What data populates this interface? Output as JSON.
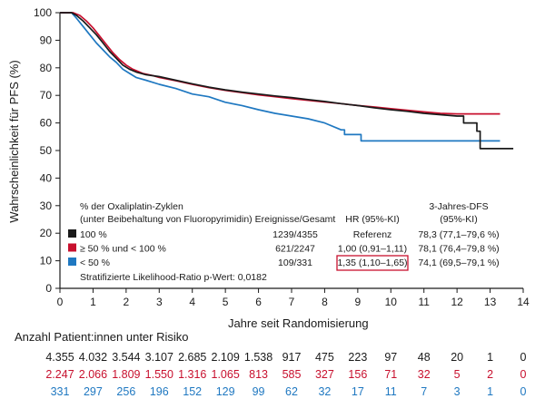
{
  "chart_data": {
    "type": "line",
    "subtype": "kaplan-meier",
    "xlabel": "Jahre seit Randomisierung",
    "ylabel": "Wahrscheinlichkeit für PFS (%)",
    "xlim": [
      0,
      14
    ],
    "ylim": [
      0,
      100
    ],
    "xticks": [
      "0",
      "1",
      "2",
      "3",
      "4",
      "5",
      "6",
      "7",
      "8",
      "9",
      "10",
      "11",
      "12",
      "13",
      "14"
    ],
    "yticks": [
      "0",
      "10",
      "20",
      "30",
      "40",
      "50",
      "60",
      "70",
      "80",
      "90",
      "100"
    ],
    "grid": false,
    "series": [
      {
        "name": "100 %",
        "color": "#1a1a1a",
        "points": [
          [
            0,
            100
          ],
          [
            0.35,
            100
          ],
          [
            0.5,
            99
          ],
          [
            0.7,
            97
          ],
          [
            0.9,
            94.5
          ],
          [
            1.1,
            92
          ],
          [
            1.3,
            89
          ],
          [
            1.5,
            86
          ],
          [
            1.7,
            83.5
          ],
          [
            1.9,
            81
          ],
          [
            2.1,
            79.5
          ],
          [
            2.3,
            78.5
          ],
          [
            2.6,
            77.5
          ],
          [
            3.0,
            76.8
          ],
          [
            3.5,
            75.5
          ],
          [
            4.0,
            74.2
          ],
          [
            4.5,
            73
          ],
          [
            5.0,
            72
          ],
          [
            5.5,
            71.2
          ],
          [
            6.0,
            70.5
          ],
          [
            6.5,
            69.8
          ],
          [
            7.0,
            69.2
          ],
          [
            7.5,
            68.5
          ],
          [
            8.0,
            67.8
          ],
          [
            8.5,
            67
          ],
          [
            9.0,
            66.3
          ],
          [
            9.5,
            65.5
          ],
          [
            10.0,
            64.8
          ],
          [
            10.5,
            64.2
          ],
          [
            11.0,
            63.5
          ],
          [
            11.5,
            63
          ],
          [
            12.0,
            62.5
          ],
          [
            12.2,
            62.5
          ],
          [
            12.2,
            60
          ],
          [
            12.6,
            60
          ],
          [
            12.6,
            57
          ],
          [
            12.7,
            57
          ],
          [
            12.7,
            50.7
          ],
          [
            13.7,
            50.7
          ]
        ]
      },
      {
        "name": "≥ 50 % und < 100 %",
        "color": "#c8102e",
        "points": [
          [
            0,
            100
          ],
          [
            0.4,
            100
          ],
          [
            0.6,
            99
          ],
          [
            0.8,
            97
          ],
          [
            1.0,
            94.5
          ],
          [
            1.2,
            91.5
          ],
          [
            1.4,
            88.5
          ],
          [
            1.6,
            85.5
          ],
          [
            1.8,
            83
          ],
          [
            2.0,
            81
          ],
          [
            2.2,
            79.5
          ],
          [
            2.5,
            78
          ],
          [
            2.8,
            77.2
          ],
          [
            3.0,
            76.5
          ],
          [
            3.5,
            75.3
          ],
          [
            4.0,
            74
          ],
          [
            4.5,
            72.8
          ],
          [
            5.0,
            71.8
          ],
          [
            5.5,
            71
          ],
          [
            6.0,
            70.2
          ],
          [
            6.5,
            69.5
          ],
          [
            7.0,
            68.8
          ],
          [
            7.5,
            68.2
          ],
          [
            8.0,
            67.6
          ],
          [
            8.5,
            67
          ],
          [
            9.0,
            66.3
          ],
          [
            9.5,
            65.8
          ],
          [
            10.0,
            65.2
          ],
          [
            10.5,
            64.6
          ],
          [
            11.0,
            64
          ],
          [
            11.5,
            63.5
          ],
          [
            12.0,
            63.3
          ],
          [
            13.3,
            63.3
          ]
        ]
      },
      {
        "name": "< 50 %",
        "color": "#1f78c1",
        "points": [
          [
            0,
            100
          ],
          [
            0.35,
            100
          ],
          [
            0.5,
            98
          ],
          [
            0.7,
            95
          ],
          [
            0.9,
            92
          ],
          [
            1.1,
            89
          ],
          [
            1.3,
            86.5
          ],
          [
            1.5,
            84
          ],
          [
            1.7,
            82
          ],
          [
            1.9,
            79.5
          ],
          [
            2.1,
            78
          ],
          [
            2.3,
            76.5
          ],
          [
            2.6,
            75.5
          ],
          [
            3.0,
            74
          ],
          [
            3.5,
            72.5
          ],
          [
            4.0,
            70.5
          ],
          [
            4.5,
            69.5
          ],
          [
            5.0,
            67.5
          ],
          [
            5.5,
            66.3
          ],
          [
            6.0,
            64.8
          ],
          [
            6.5,
            63.5
          ],
          [
            7.0,
            62.5
          ],
          [
            7.5,
            61.5
          ],
          [
            8.0,
            60
          ],
          [
            8.5,
            57.5
          ],
          [
            8.6,
            57.5
          ],
          [
            8.6,
            55.8
          ],
          [
            9.0,
            55.8
          ],
          [
            9.1,
            55.8
          ],
          [
            9.1,
            53.5
          ],
          [
            13.3,
            53.5
          ]
        ]
      }
    ],
    "legend": {
      "placement": "bottom-left",
      "group_title_1": "% der Oxaliplatin-Zyklen",
      "group_title_2": "(unter Beibehaltung von Fluoropyrimidin)",
      "col_events": "Ereignisse/Gesamt",
      "col_hr": "HR (95%-KI)",
      "col_dfs_1": "3-Jahres-DFS",
      "col_dfs_2": "(95%-KI)",
      "rows": [
        {
          "label": "100 %",
          "events": "1239/4355",
          "hr": "Referenz",
          "dfs": "78,3 (77,1–79,6 %)"
        },
        {
          "label": "≥ 50 % und < 100 %",
          "events": "621/2247",
          "hr": "1,00 (0,91–1,11)",
          "dfs": "78,1 (76,4–79,8 %)"
        },
        {
          "label": "< 50 %",
          "events": "109/331",
          "hr": "1,35 (1,10–1,65)",
          "dfs": "74,1 (69,5–79,1 %)"
        }
      ],
      "footnote": "Stratifizierte Likelihood-Ratio p-Wert: 0,0182"
    },
    "risk_table": {
      "title": "Anzahl Patient:innen unter Risiko",
      "rows": [
        {
          "color": "#1a1a1a",
          "values": [
            "4.355",
            "4.032",
            "3.544",
            "3.107",
            "2.685",
            "2.109",
            "1.538",
            "917",
            "475",
            "223",
            "97",
            "48",
            "20",
            "1",
            "0"
          ]
        },
        {
          "color": "#c8102e",
          "values": [
            "2.247",
            "2.066",
            "1.809",
            "1.550",
            "1.316",
            "1.065",
            "813",
            "585",
            "327",
            "156",
            "71",
            "32",
            "5",
            "2",
            "0"
          ]
        },
        {
          "color": "#1f78c1",
          "values": [
            "331",
            "297",
            "256",
            "196",
            "152",
            "129",
            "99",
            "62",
            "32",
            "17",
            "11",
            "7",
            "3",
            "1",
            "0"
          ]
        }
      ]
    }
  }
}
